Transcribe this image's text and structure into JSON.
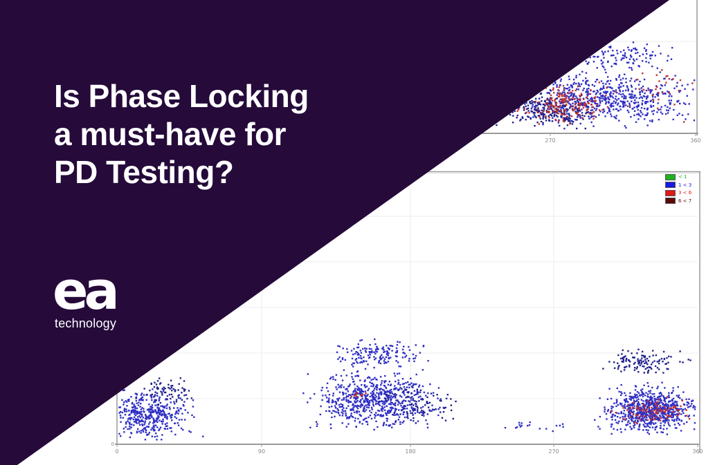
{
  "overlay": {
    "color": "#250a3a",
    "title_lines": [
      "Is Phase Locking",
      "a must-have for",
      "PD Testing?"
    ],
    "logo_text": "ea",
    "logo_subtext": "technology"
  },
  "chart_data": [
    {
      "id": "top-chart",
      "type": "scatter",
      "description": "Partial phase-resolved PD scatter plot, upper-right, mostly hidden by diagonal overlay",
      "seed": 7,
      "x_axis_label_units": "phase-degrees",
      "x_ticks": [
        {
          "label": "270",
          "px": 795
        },
        {
          "label": "360",
          "px": 1005
        }
      ],
      "plot": {
        "x0": 600,
        "x1": 1007,
        "y0": 0,
        "y1": 193,
        "grid_x0": 640,
        "axis_x0": 600,
        "axis_x1": 1009
      },
      "borders": [
        {
          "x1": 1007,
          "y1": 0,
          "x2": 1007,
          "y2": 196,
          "w": 1.5
        }
      ],
      "gridlines": {
        "h": [
          60
        ],
        "v": [
          800
        ]
      },
      "colors": {
        "axis": "#9a9a9a",
        "grid": "#ededed",
        "tick_text": "#888888",
        "blue": "#2f2fc4",
        "navy": "#20208c",
        "red": "#c03030"
      },
      "clip": {
        "x": [
          660,
          1005
        ],
        "y": [
          52,
          191
        ]
      },
      "clusters": [
        {
          "count": 620,
          "cx": 880,
          "cy": 143,
          "rx": 165,
          "ry": 50,
          "color": "blue"
        },
        {
          "count": 260,
          "cx": 800,
          "cy": 160,
          "rx": 88,
          "ry": 30,
          "color": "navy"
        },
        {
          "count": 120,
          "cx": 895,
          "cy": 82,
          "rx": 118,
          "ry": 30,
          "color": "blue"
        },
        {
          "count": 170,
          "cx": 815,
          "cy": 150,
          "rx": 85,
          "ry": 36,
          "color": "red"
        },
        {
          "count": 28,
          "cx": 945,
          "cy": 135,
          "rx": 62,
          "ry": 60,
          "color": "red"
        }
      ]
    },
    {
      "id": "bottom-chart",
      "type": "scatter",
      "description": "Phase-resolved PD scatter plot: clusters near 10-50 deg, 120-200 deg and 290-360 deg",
      "seed": 42,
      "x_axis_label_units": "phase-degrees",
      "x_ticks": [
        {
          "label": "0",
          "px": 169
        },
        {
          "label": "90",
          "px": 378
        },
        {
          "label": "180",
          "px": 593
        },
        {
          "label": "270",
          "px": 800
        },
        {
          "label": "360",
          "px": 1008
        }
      ],
      "y_origin_label": "0",
      "y_axis": true,
      "plot": {
        "x0": 169,
        "x1": 1008,
        "y0": 248,
        "y1": 643,
        "grid_x0": 169,
        "axis_x0": 166,
        "axis_x1": 1010
      },
      "borders": [
        {
          "x1": 152,
          "y1": 248.5,
          "x2": 1012,
          "y2": 248.5,
          "w": 1.5
        },
        {
          "x1": 152,
          "y1": 250.5,
          "x2": 1012,
          "y2": 250.5,
          "w": 1,
          "color": "#dcdcdc"
        },
        {
          "x1": 1011,
          "y1": 248,
          "x2": 1011,
          "y2": 655,
          "w": 1.5
        }
      ],
      "gridlines": {
        "h": [
          313,
          379,
          445,
          511,
          577
        ],
        "v": [
          378,
          593,
          800
        ]
      },
      "colors": {
        "axis": "#9a9a9a",
        "grid": "#ededed",
        "tick_text": "#888888",
        "blue": "#2f2fc4",
        "navy": "#20208c",
        "red": "#c03030"
      },
      "clip": {
        "x": [
          170,
          1006
        ],
        "y": [
          252,
          641
        ]
      },
      "legend": [
        {
          "label": "< 1",
          "color": "#1db31d"
        },
        {
          "label": "1 < 3",
          "color": "#1a1ae0"
        },
        {
          "label": "3 < 6",
          "color": "#e01818"
        },
        {
          "label": "6 < 7",
          "color": "#5c0909"
        }
      ],
      "clusters": [
        {
          "count": 430,
          "cx": 215,
          "cy": 600,
          "rx": 82,
          "ry": 44,
          "color": "blue"
        },
        {
          "count": 70,
          "cx": 240,
          "cy": 565,
          "rx": 56,
          "ry": 26,
          "color": "navy"
        },
        {
          "count": 680,
          "cx": 540,
          "cy": 580,
          "rx": 112,
          "ry": 56,
          "color": "blue"
        },
        {
          "count": 160,
          "cx": 545,
          "cy": 513,
          "rx": 86,
          "ry": 28,
          "color": "blue"
        },
        {
          "count": 90,
          "cx": 605,
          "cy": 588,
          "rx": 75,
          "ry": 42,
          "color": "navy"
        },
        {
          "count": 10,
          "cx": 515,
          "cy": 572,
          "rx": 28,
          "ry": 9,
          "color": "red"
        },
        {
          "count": 18,
          "cx": 770,
          "cy": 617,
          "rx": 82,
          "ry": 9,
          "color": "blue"
        },
        {
          "count": 760,
          "cx": 940,
          "cy": 592,
          "rx": 84,
          "ry": 42,
          "color": "blue"
        },
        {
          "count": 120,
          "cx": 930,
          "cy": 523,
          "rx": 76,
          "ry": 26,
          "color": "navy"
        },
        {
          "count": 95,
          "cx": 945,
          "cy": 594,
          "rx": 68,
          "ry": 24,
          "color": "red"
        }
      ]
    }
  ]
}
